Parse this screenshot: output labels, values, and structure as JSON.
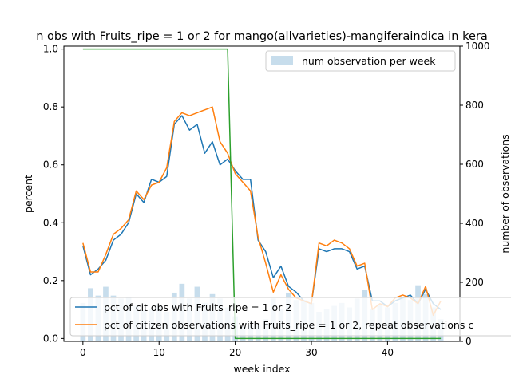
{
  "chart_data": {
    "type": "line",
    "title": "n obs with Fruits_ripe = 1 or 2 for mango(allvarieties)-mangiferaindica in kera",
    "xlabel": "week index",
    "ylabel": "percent",
    "y2label": "number of observations",
    "xlim": [
      -2.5,
      49.5
    ],
    "ylim": [
      -0.01,
      1.01
    ],
    "y2lim": [
      0,
      1000
    ],
    "x_ticks": [
      "0",
      "10",
      "20",
      "30",
      "40"
    ],
    "y_ticks": [
      "0.0",
      "0.2",
      "0.4",
      "0.6",
      "0.8",
      "1.0"
    ],
    "y2_ticks": [
      "0",
      "200",
      "400",
      "600",
      "800",
      "1000"
    ],
    "grid": false,
    "legend_bars_position": "top-right",
    "legend_lines_position": "lower-left",
    "colors": {
      "cit": "#1f77b4",
      "citizen_repeat": "#ff7f0e",
      "green": "#2ca02c",
      "bars": "#1f77b4"
    },
    "bars": {
      "name": "num observation per week",
      "x": [
        0,
        1,
        2,
        3,
        4,
        5,
        6,
        7,
        8,
        9,
        10,
        11,
        12,
        13,
        14,
        15,
        16,
        17,
        18,
        19,
        20,
        21,
        22,
        23,
        24,
        25,
        26,
        27,
        28,
        29,
        30,
        31,
        32,
        33,
        34,
        35,
        36,
        37,
        38,
        39,
        40,
        41,
        42,
        43,
        44,
        45,
        46,
        47
      ],
      "values": [
        130,
        180,
        155,
        185,
        155,
        145,
        150,
        120,
        105,
        110,
        125,
        100,
        165,
        195,
        145,
        185,
        130,
        160,
        145,
        115,
        85,
        50,
        55,
        55,
        75,
        145,
        110,
        165,
        140,
        140,
        130,
        100,
        110,
        120,
        130,
        115,
        145,
        175,
        110,
        125,
        115,
        130,
        150,
        140,
        190,
        160,
        115,
        75
      ]
    },
    "series": [
      {
        "name": "pct of cit obs with Fruits_ripe = 1 or 2",
        "x": [
          0,
          1,
          2,
          3,
          4,
          5,
          6,
          7,
          8,
          9,
          10,
          11,
          12,
          13,
          14,
          15,
          16,
          17,
          18,
          19,
          20,
          21,
          22,
          23,
          24,
          25,
          26,
          27,
          28,
          29,
          30,
          31,
          32,
          33,
          34,
          35,
          36,
          37,
          38,
          39,
          40,
          41,
          42,
          43,
          44,
          45,
          46,
          47
        ],
        "values": [
          0.32,
          0.22,
          0.24,
          0.27,
          0.34,
          0.36,
          0.4,
          0.5,
          0.47,
          0.55,
          0.54,
          0.56,
          0.74,
          0.77,
          0.72,
          0.74,
          0.64,
          0.68,
          0.6,
          0.62,
          0.58,
          0.55,
          0.55,
          0.34,
          0.3,
          0.21,
          0.25,
          0.18,
          0.16,
          0.13,
          0.12,
          0.31,
          0.3,
          0.31,
          0.31,
          0.3,
          0.24,
          0.25,
          0.13,
          0.13,
          0.11,
          0.13,
          0.14,
          0.15,
          0.12,
          0.17,
          0.12,
          0.1
        ]
      },
      {
        "name": "pct of citizen observations with Fruits_ripe = 1 or 2, repeat observations c",
        "x": [
          0,
          1,
          2,
          3,
          4,
          5,
          6,
          7,
          8,
          9,
          10,
          11,
          12,
          13,
          14,
          15,
          16,
          17,
          18,
          19,
          20,
          21,
          22,
          23,
          24,
          25,
          26,
          27,
          28,
          29,
          30,
          31,
          32,
          33,
          34,
          35,
          36,
          37,
          38,
          39,
          40,
          41,
          42,
          43,
          44,
          45,
          46,
          47
        ],
        "values": [
          0.33,
          0.23,
          0.23,
          0.29,
          0.36,
          0.38,
          0.41,
          0.51,
          0.48,
          0.53,
          0.54,
          0.59,
          0.75,
          0.78,
          0.77,
          0.78,
          0.79,
          0.8,
          0.68,
          0.64,
          0.57,
          0.54,
          0.51,
          0.35,
          0.26,
          0.16,
          0.22,
          0.17,
          0.14,
          0.13,
          0.12,
          0.33,
          0.32,
          0.34,
          0.33,
          0.31,
          0.25,
          0.26,
          0.1,
          0.12,
          0.11,
          0.14,
          0.15,
          0.14,
          0.12,
          0.18,
          0.08,
          0.13
        ]
      },
      {
        "name": "",
        "x": [
          0,
          1,
          2,
          3,
          4,
          5,
          6,
          7,
          8,
          9,
          10,
          11,
          12,
          13,
          14,
          15,
          16,
          17,
          18,
          19,
          20,
          21,
          22,
          23,
          24,
          25,
          26,
          27,
          28,
          29,
          30,
          31,
          32,
          33,
          34,
          35,
          36,
          37,
          38,
          39,
          40,
          41,
          42,
          43,
          44,
          45,
          46,
          47
        ],
        "values": [
          1,
          1,
          1,
          1,
          1,
          1,
          1,
          1,
          1,
          1,
          1,
          1,
          1,
          1,
          1,
          1,
          1,
          1,
          1,
          1,
          0,
          0,
          0,
          0,
          0,
          0,
          0,
          0,
          0,
          0,
          0,
          0,
          0,
          0,
          0,
          0,
          0,
          0,
          0,
          0,
          0,
          0,
          0,
          0,
          0,
          0,
          0,
          0
        ]
      }
    ]
  }
}
